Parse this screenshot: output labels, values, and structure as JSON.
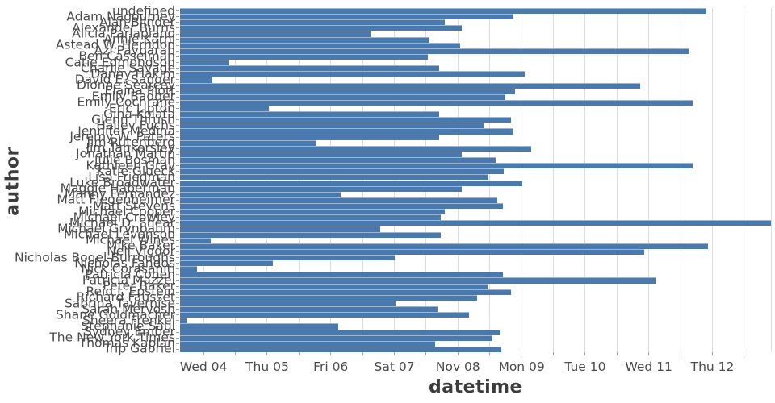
{
  "colors": {
    "bar": "#4a79ad",
    "grid": "#dcdcdc",
    "tick_mark": "#a3a3a3",
    "tick_label": "#4b4b4b",
    "axis_label": "#3c3c3c",
    "background": "#ffffff"
  },
  "chart_data": {
    "type": "bar",
    "orientation": "horizontal",
    "title": "",
    "xlabel": "datetime",
    "ylabel": "author",
    "grid": true,
    "legend": false,
    "x_unit": "day of November (decimal), e.g. 9.5 = Nov 09 12:00",
    "xlim": [
      3.63,
      12.92
    ],
    "x_ticks": [
      {
        "day": 4,
        "label": "Wed 04"
      },
      {
        "day": 5,
        "label": "Thu 05"
      },
      {
        "day": 6,
        "label": "Fri 06"
      },
      {
        "day": 7,
        "label": "Sat 07"
      },
      {
        "day": 8,
        "label": "Nov 08"
      },
      {
        "day": 9,
        "label": "Mon 09"
      },
      {
        "day": 10,
        "label": "Tue 10"
      },
      {
        "day": 11,
        "label": "Wed 11"
      },
      {
        "day": 12,
        "label": "Thu 12"
      }
    ],
    "minor_grid_step": 0.5,
    "categories": [
      "undefined",
      "Adam Nagourney",
      "Alan Blinder",
      "Alexander Burns",
      "Alicia Parlapiano",
      "Annie Karni",
      "Astead W. Herndon",
      "Azi Paybarah",
      "Ben Casselman",
      "Catie Edmondson",
      "Charlie Savage",
      "Danny Hakim",
      "David E. Sanger",
      "Dionne Searcey",
      "Elaina Plott",
      "Emily Badger",
      "Emily Cochrane",
      "Eric Lipton",
      "Gina Kolata",
      "Glenn Thrush",
      "Hailey Fuchs",
      "Jennifer Medina",
      "Jeremy W. Peters",
      "Jim Rutenberg",
      "Jim Tankersley",
      "Jonathan Martin",
      "Julie Bosman",
      "Kathleen Gray",
      "Katie Glueck",
      "Lisa Friedman",
      "Luke Broadwater",
      "Maggie Haberman",
      "Manny Fernandez",
      "Matt Flegenheimer",
      "Matt Stevens",
      "Michael Cooper",
      "Michael Crowley",
      "Michael D. Shear",
      "Michael Grynbaum",
      "Michael Levenson",
      "Michael Wines",
      "Mike Baker",
      "Neil Vigdor",
      "Nicholas Bogel-Burroughs",
      "Nicholas Fandos",
      "Nick Corasaniti",
      "Patricia Cohen",
      "Patricia Mazzei",
      "Peter Baker",
      "Reid J. Epstein",
      "Richard Fausset",
      "Sabrina Tavernise",
      "Sarah Mervosh",
      "Shane Goldmacher",
      "Sheera Frenkel",
      "Stephanie Saul",
      "Sydney Ember",
      "The New York Times",
      "Thomas Kaplan",
      "Trip Gabriel"
    ],
    "values": [
      11.9,
      8.87,
      7.79,
      8.06,
      6.63,
      7.55,
      8.03,
      11.63,
      7.53,
      4.41,
      7.71,
      9.05,
      4.14,
      10.86,
      8.9,
      8.74,
      11.69,
      5.02,
      7.71,
      8.83,
      8.41,
      8.87,
      7.71,
      5.77,
      9.15,
      8.06,
      8.59,
      11.69,
      8.72,
      8.48,
      9.01,
      8.06,
      6.16,
      8.62,
      8.71,
      7.79,
      7.73,
      12.92,
      6.78,
      7.73,
      4.11,
      11.93,
      10.93,
      7.01,
      5.09,
      3.9,
      8.71,
      11.1,
      8.46,
      8.83,
      8.3,
      7.02,
      7.68,
      8.17,
      3.74,
      6.12,
      8.65,
      8.54,
      7.64,
      8.68
    ]
  }
}
